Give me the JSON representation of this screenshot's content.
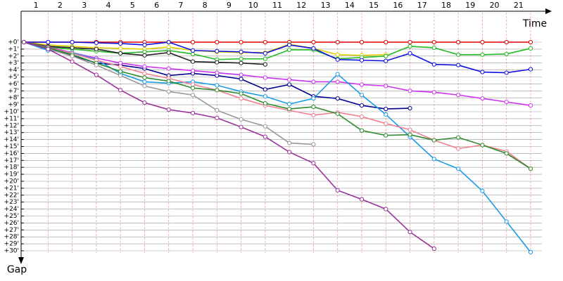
{
  "chart_data": {
    "type": "line",
    "x_title": "Time",
    "y_title": "Gap",
    "lap_labels": [
      1,
      2,
      3,
      4,
      5,
      6,
      7,
      8,
      9,
      10,
      11,
      12,
      13,
      14,
      15,
      16,
      17,
      18,
      19,
      20,
      21
    ],
    "x": [
      0,
      1,
      2,
      3,
      4,
      5,
      6,
      7,
      8,
      9,
      10,
      11,
      12,
      13,
      14,
      15,
      16,
      17,
      18,
      19,
      20,
      21
    ],
    "xlim": [
      0,
      21
    ],
    "ylim": [
      0,
      30
    ],
    "yticks": [
      {
        "value": 0,
        "label": "+0'"
      },
      {
        "value": 1,
        "label": "+1'"
      },
      {
        "value": 2,
        "label": "+2'"
      },
      {
        "value": 3,
        "label": "+3'"
      },
      {
        "value": 4,
        "label": "+4'"
      },
      {
        "value": 5,
        "label": "+5'"
      },
      {
        "value": 6,
        "label": "+6'"
      },
      {
        "value": 7,
        "label": "+7'"
      },
      {
        "value": 8,
        "label": "+8'"
      },
      {
        "value": 9,
        "label": "+9'"
      },
      {
        "value": 10,
        "label": "+10'"
      },
      {
        "value": 11,
        "label": "+11'"
      },
      {
        "value": 12,
        "label": "+12'"
      },
      {
        "value": 13,
        "label": "+13'"
      },
      {
        "value": 14,
        "label": "+14'"
      },
      {
        "value": 15,
        "label": "+15'"
      },
      {
        "value": 16,
        "label": "+16'"
      },
      {
        "value": 17,
        "label": "+17'"
      },
      {
        "value": 18,
        "label": "+18'"
      },
      {
        "value": 19,
        "label": "+19'"
      },
      {
        "value": 20,
        "label": "+20'"
      },
      {
        "value": 21,
        "label": "+21'"
      },
      {
        "value": 22,
        "label": "+22'"
      },
      {
        "value": 23,
        "label": "+23'"
      },
      {
        "value": 24,
        "label": "+24'"
      },
      {
        "value": 25,
        "label": "+25'"
      },
      {
        "value": 26,
        "label": "+26'"
      },
      {
        "value": 27,
        "label": "+27'"
      },
      {
        "value": 28,
        "label": "+28'"
      },
      {
        "value": 29,
        "label": "+29'"
      },
      {
        "value": 30,
        "label": "+30'"
      }
    ],
    "grid": true,
    "series": [
      {
        "color": "#e00000",
        "values": [
          0,
          0,
          0,
          0,
          0,
          0,
          0,
          0,
          0,
          0,
          0,
          0,
          0,
          0,
          0,
          0,
          0,
          0,
          0,
          0,
          0,
          0
        ]
      },
      {
        "color": "#e0d000",
        "values": [
          0,
          0.4,
          0.6,
          0.8,
          0.9,
          1.0,
          0.7,
          1.2,
          1.4,
          1.5,
          1.5,
          0.3,
          0.9,
          1.8,
          1.9,
          1.8,
          null,
          null,
          null,
          null,
          null,
          null
        ]
      },
      {
        "color": "#22bb22",
        "values": [
          0,
          0.7,
          1.0,
          1.3,
          1.6,
          1.4,
          1.2,
          1.7,
          2.5,
          2.4,
          2.4,
          1.1,
          1.1,
          2.4,
          2.2,
          2.0,
          0.6,
          0.8,
          1.8,
          1.8,
          1.7,
          0.9
        ]
      },
      {
        "color": "#1010e0",
        "values": [
          0,
          0,
          0,
          0.1,
          0.2,
          0.4,
          0,
          1.2,
          1.3,
          1.4,
          1.6,
          0.4,
          0.9,
          2.5,
          2.6,
          2.7,
          1.6,
          3.2,
          3.3,
          4.3,
          4.4,
          3.9
        ]
      },
      {
        "color": "#222222",
        "values": [
          0,
          0.6,
          0.8,
          1.0,
          1.6,
          1.9,
          1.5,
          2.8,
          2.9,
          3.0,
          3.2,
          null,
          null,
          null,
          null,
          null,
          null,
          null,
          null,
          null,
          null,
          null
        ]
      },
      {
        "color": "#000090",
        "values": [
          0,
          0.8,
          1.9,
          3.0,
          3.3,
          3.8,
          4.8,
          4.5,
          4.8,
          5.3,
          6.8,
          6.1,
          7.8,
          8.1,
          9.1,
          9.6,
          9.5,
          null,
          null,
          null,
          null,
          null
        ]
      },
      {
        "color": "#cc33ee",
        "values": [
          0,
          0.7,
          1.5,
          2.3,
          3.0,
          3.5,
          3.8,
          4.1,
          4.4,
          4.7,
          5.1,
          5.4,
          5.7,
          5.7,
          6.1,
          6.3,
          7.0,
          7.2,
          7.6,
          8.1,
          8.6,
          9.1
        ]
      },
      {
        "color": "#1a9be8",
        "values": [
          0,
          1.2,
          1.5,
          2.5,
          4.5,
          5.7,
          5.9,
          5.7,
          6.2,
          7.1,
          7.8,
          8.9,
          8.1,
          4.6,
          7.6,
          10.4,
          13.6,
          16.8,
          18.2,
          21.4,
          25.8,
          30.2
        ]
      },
      {
        "color": "#f08090",
        "values": [
          0,
          0.8,
          1.6,
          2.6,
          3.5,
          4.5,
          5.2,
          6.1,
          6.9,
          8.1,
          9.1,
          9.8,
          10.5,
          10.1,
          10.7,
          11.7,
          12.6,
          14.1,
          15.3,
          14.8,
          15.7,
          18.2
        ]
      },
      {
        "color": "#2e8b2e",
        "values": [
          0,
          0.8,
          1.8,
          3.0,
          4.2,
          5.1,
          5.6,
          6.6,
          6.9,
          7.4,
          8.8,
          9.6,
          9.3,
          10.3,
          12.7,
          13.4,
          13.3,
          14.1,
          13.7,
          14.8,
          16.0,
          18.2
        ]
      },
      {
        "color": "#999999",
        "values": [
          0,
          1.0,
          2.0,
          3.3,
          4.8,
          6.3,
          7.1,
          7.6,
          9.8,
          11.1,
          12.1,
          14.5,
          14.7,
          null,
          null,
          null,
          null,
          null,
          null,
          null,
          null,
          null
        ]
      },
      {
        "color": "#993399",
        "values": [
          0,
          1.0,
          2.8,
          4.7,
          6.9,
          8.7,
          9.7,
          10.2,
          10.9,
          12.2,
          13.6,
          15.8,
          17.4,
          21.3,
          22.6,
          24.0,
          27.3,
          29.7,
          null,
          null,
          null,
          null
        ]
      }
    ]
  }
}
